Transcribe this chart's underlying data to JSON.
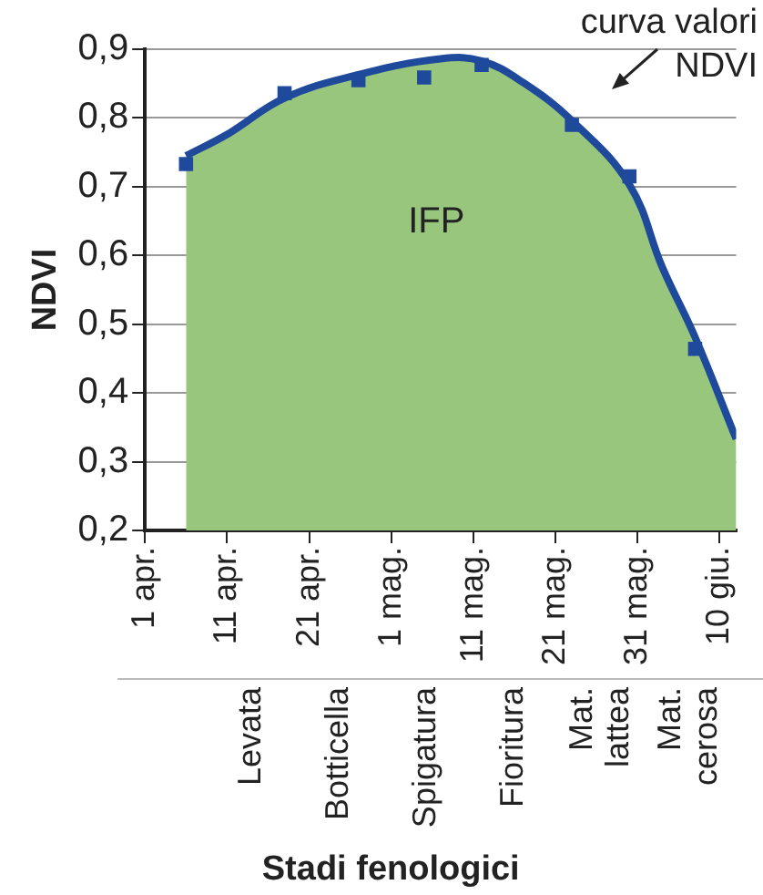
{
  "chart_data": {
    "type": "line",
    "ylabel": "NDVI",
    "grid": "y",
    "xlim": [
      "--04-01",
      "--06-12"
    ],
    "xticks": [
      {
        "value": "--04-01",
        "label": "1 apr."
      },
      {
        "value": "--04-11",
        "label": "11 apr."
      },
      {
        "value": "--04-21",
        "label": "21 apr."
      },
      {
        "value": "--05-01",
        "label": "1 mag."
      },
      {
        "value": "--05-11",
        "label": "11 mag."
      },
      {
        "value": "--05-21",
        "label": "21 mag."
      },
      {
        "value": "--05-31",
        "label": "31 mag."
      },
      {
        "value": "--06-10",
        "label": "10 giu."
      }
    ],
    "ylim": [
      0.2,
      0.9
    ],
    "yticks": [
      {
        "value": 0.2,
        "label": "0,2"
      },
      {
        "value": 0.3,
        "label": "0,3"
      },
      {
        "value": 0.4,
        "label": "0,4"
      },
      {
        "value": 0.5,
        "label": "0,5"
      },
      {
        "value": 0.6,
        "label": "0,6"
      },
      {
        "value": 0.7,
        "label": "0,7"
      },
      {
        "value": 0.8,
        "label": "0,8"
      },
      {
        "value": 0.9,
        "label": "0,9"
      }
    ],
    "annotations": [
      "curva valori NDVI",
      "Levata",
      "Botticella",
      "Spigatura",
      "Fioritura",
      "Mat. lattea",
      "Mat. cerosa",
      "Stadi fenologici"
    ],
    "series": [
      {
        "name": "IFP",
        "type": "area",
        "color": "#97c67c",
        "x": [
          "--04-06",
          "--04-11",
          "--04-18",
          "--04-27",
          "--05-07",
          "--05-12",
          "--05-17",
          "--05-23",
          "--05-30",
          "--06-03",
          "--06-07",
          "--06-12"
        ],
        "values": [
          0.745,
          0.776,
          0.829,
          0.863,
          0.886,
          0.883,
          0.852,
          0.796,
          0.703,
          0.583,
          0.481,
          0.333
        ]
      },
      {
        "color": "#1f4a9c",
        "marker": "none",
        "x": [
          "--04-06",
          "--04-11",
          "--04-18",
          "--04-27",
          "--05-07",
          "--05-12",
          "--05-17",
          "--05-23",
          "--05-30",
          "--06-03",
          "--06-07",
          "--06-12"
        ],
        "values": [
          0.745,
          0.776,
          0.829,
          0.863,
          0.886,
          0.883,
          0.852,
          0.796,
          0.703,
          0.583,
          0.481,
          0.333
        ]
      },
      {
        "type": "scatter",
        "color": "#1f4a9c",
        "marker": "square",
        "x": [
          "--04-06",
          "--04-18",
          "--04-27",
          "--05-05",
          "--05-12",
          "--05-23",
          "--05-30",
          "--06-07"
        ],
        "values": [
          0.733,
          0.836,
          0.855,
          0.859,
          0.877,
          0.79,
          0.715,
          0.464
        ]
      }
    ]
  }
}
